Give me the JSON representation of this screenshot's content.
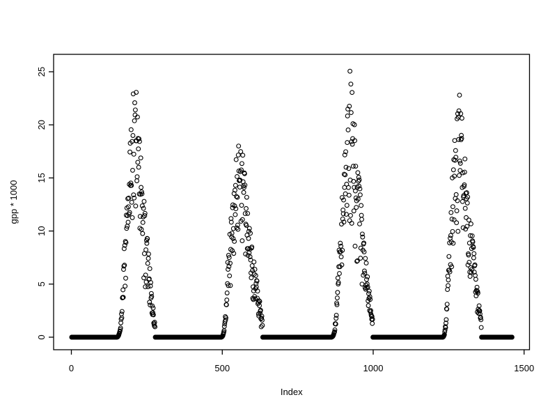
{
  "figure": {
    "background": "#ffffff",
    "foreground": "#000000"
  },
  "chart_data": {
    "type": "scatter",
    "title": "",
    "xlabel": "Index",
    "ylabel": "gpp * 1000",
    "marker": "open-circle",
    "marker_color": "#000000",
    "grid": false,
    "legend": null,
    "n_points": 1460,
    "xlim": [
      1,
      1460
    ],
    "ylim": [
      0,
      25.6
    ],
    "x_ticks": [
      0,
      500,
      1000,
      1500
    ],
    "y_ticks": [
      0,
      5,
      10,
      15,
      20,
      25
    ],
    "x_tick_labels": [
      "0",
      "500",
      "1000",
      "1500"
    ],
    "y_tick_labels": [
      "0",
      "5",
      "10",
      "15",
      "20",
      "25"
    ],
    "description": "Daily gpp*1000 time series over ~4 annual cycles: values sit at 0 through winter, ramp up steeply in spring, scatter widely to a summer peak, then decline back to 0 in autumn.",
    "zero_runs": [
      [
        1,
        148
      ],
      [
        278,
        494
      ],
      [
        634,
        859
      ],
      [
        999,
        1228
      ],
      [
        1359,
        1460
      ]
    ],
    "seasons": [
      {
        "start": 149,
        "rise_end": 176,
        "peak_day": 209,
        "end": 277,
        "peak": 25.5,
        "rise_to": 8,
        "tail": 1.8
      },
      {
        "start": 495,
        "rise_end": 519,
        "peak_day": 557,
        "end": 633,
        "peak": 20.4,
        "rise_to": 7,
        "tail": 1.8
      },
      {
        "start": 860,
        "rise_end": 887,
        "peak_day": 924,
        "end": 998,
        "peak": 25.6,
        "rise_to": 8,
        "tail": 1.8
      },
      {
        "start": 1229,
        "rise_end": 1250,
        "peak_day": 1283,
        "end": 1358,
        "peak": 24.6,
        "rise_to": 8,
        "tail": 1.8
      }
    ],
    "peak_values": [
      25.5,
      20.4,
      25.6,
      24.6
    ],
    "noise": {
      "seed": 987654321,
      "scatter_low": 0.4,
      "scatter_span": 0.6,
      "scatter_pow": 0.65,
      "rise_low": 0.72,
      "rise_span": 0.45,
      "rise_env_pow": 3.0,
      "climb_pow": 0.85,
      "fall_pow": 1.15
    }
  }
}
